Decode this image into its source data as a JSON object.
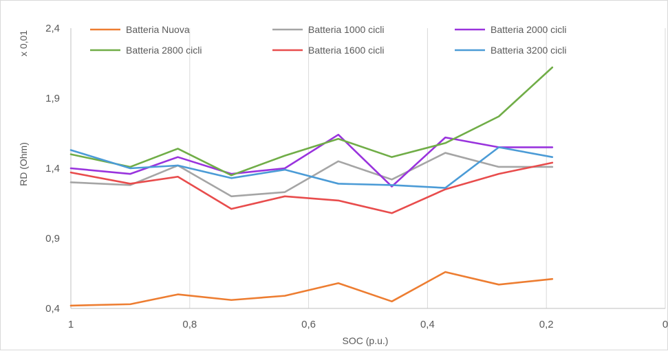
{
  "chart_data": {
    "type": "line",
    "xlabel": "SOC (p.u.)",
    "ylabel": "RD (Ohm)",
    "y_multiplier": "x 0,01",
    "xlim": [
      1,
      0
    ],
    "x_reversed": true,
    "ylim": [
      0.4,
      2.4
    ],
    "x_ticks": [
      1,
      0.8,
      0.6,
      0.4,
      0.2,
      0
    ],
    "x_tick_labels": [
      "1",
      "0,8",
      "0,6",
      "0,4",
      "0,2",
      "0"
    ],
    "y_ticks": [
      0.4,
      0.9,
      1.4,
      1.9,
      2.4
    ],
    "y_tick_labels": [
      "0,4",
      "0,9",
      "1,4",
      "1,9",
      "2,4"
    ],
    "grid": "vertical",
    "legend_position": "top",
    "x": [
      1,
      0.9,
      0.8,
      0.7,
      0.6,
      0.5,
      0.4,
      0.3,
      0.2,
      0.1
    ],
    "series": [
      {
        "name": "Batteria Nuova",
        "color": "#ed7d31",
        "x": [
          1,
          0.9,
          0.82,
          0.73,
          0.64,
          0.55,
          0.46,
          0.37,
          0.28,
          0.19
        ],
        "values": [
          0.42,
          0.43,
          0.5,
          0.46,
          0.49,
          0.58,
          0.45,
          0.66,
          0.57,
          0.61
        ]
      },
      {
        "name": "Batteria 1000 cicli",
        "color": "#a5a5a5",
        "x": [
          1,
          0.9,
          0.82,
          0.73,
          0.64,
          0.55,
          0.46,
          0.37,
          0.28,
          0.19
        ],
        "values": [
          1.3,
          1.28,
          1.42,
          1.2,
          1.23,
          1.45,
          1.32,
          1.51,
          1.41,
          1.41
        ]
      },
      {
        "name": "Batteria 2000 cicli",
        "color": "#9933dd",
        "x": [
          1,
          0.9,
          0.82,
          0.73,
          0.64,
          0.55,
          0.46,
          0.37,
          0.28,
          0.19
        ],
        "values": [
          1.4,
          1.36,
          1.48,
          1.36,
          1.4,
          1.64,
          1.27,
          1.62,
          1.55,
          1.55
        ]
      },
      {
        "name": "Batteria 2800 cicli",
        "color": "#70ad47",
        "x": [
          1,
          0.9,
          0.82,
          0.73,
          0.64,
          0.55,
          0.46,
          0.37,
          0.28,
          0.19
        ],
        "values": [
          1.5,
          1.41,
          1.54,
          1.35,
          1.49,
          1.61,
          1.48,
          1.58,
          1.77,
          2.12
        ]
      },
      {
        "name": "Batteria 1600 cicli",
        "color": "#e84c4c",
        "x": [
          1,
          0.9,
          0.82,
          0.73,
          0.64,
          0.55,
          0.46,
          0.37,
          0.28,
          0.19
        ],
        "values": [
          1.37,
          1.29,
          1.34,
          1.11,
          1.2,
          1.17,
          1.08,
          1.25,
          1.36,
          1.44
        ]
      },
      {
        "name": "Batteria 3200 cicli",
        "color": "#4b9bd6",
        "x": [
          1,
          0.9,
          0.82,
          0.73,
          0.64,
          0.55,
          0.46,
          0.37,
          0.28,
          0.19
        ],
        "values": [
          1.53,
          1.4,
          1.42,
          1.33,
          1.39,
          1.29,
          1.28,
          1.26,
          1.55,
          1.48
        ]
      }
    ]
  }
}
